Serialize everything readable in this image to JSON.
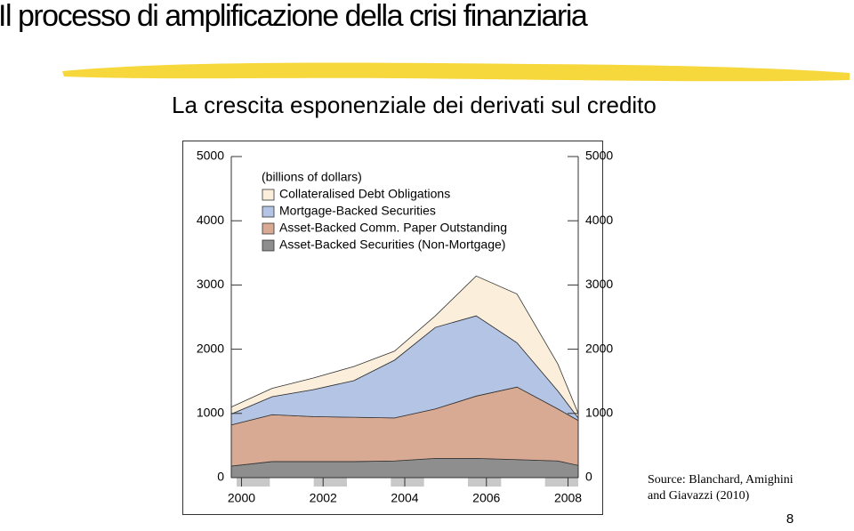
{
  "page": {
    "title": "Il processo di amplificazione della crisi finanziaria",
    "subtitle": "La crescita esponenziale dei derivati sul credito",
    "source": [
      "Source: Blanchard, Amighini",
      "and Giavazzi (2010)"
    ],
    "page_number": "8"
  },
  "chart_data": {
    "type": "stacked_area",
    "unit_label": "(billions of dollars)",
    "x": [
      1999.75,
      2000.75,
      2001.75,
      2002.75,
      2003.75,
      2004.75,
      2005.75,
      2006.75,
      2007.75,
      2008.25
    ],
    "series": [
      {
        "name": "Collateralised Debt Obligations",
        "color": "#fbefdc",
        "values": [
          110,
          130,
          180,
          220,
          140,
          180,
          620,
          760,
          420,
          70
        ]
      },
      {
        "name": "Mortgage-Backed Securities",
        "color": "#b4c4e4",
        "values": [
          170,
          280,
          420,
          570,
          900,
          1270,
          1250,
          690,
          280,
          40
        ]
      },
      {
        "name": "Asset-Backed Comm. Paper Outstanding",
        "color": "#d8aa94",
        "values": [
          640,
          730,
          700,
          690,
          670,
          770,
          970,
          1130,
          810,
          700
        ]
      },
      {
        "name": "Asset-Backed Securities (Non-Mortgage)",
        "color": "#8e8e8e",
        "values": [
          180,
          250,
          250,
          250,
          260,
          300,
          300,
          280,
          260,
          190
        ]
      }
    ],
    "xlim": [
      1999.75,
      2008.25
    ],
    "xticks": [
      2000,
      2002,
      2004,
      2006,
      2008
    ],
    "ylim": [
      0,
      5000
    ],
    "yticks": [
      0,
      1000,
      2000,
      3000,
      4000,
      5000
    ],
    "right_axis": true
  }
}
